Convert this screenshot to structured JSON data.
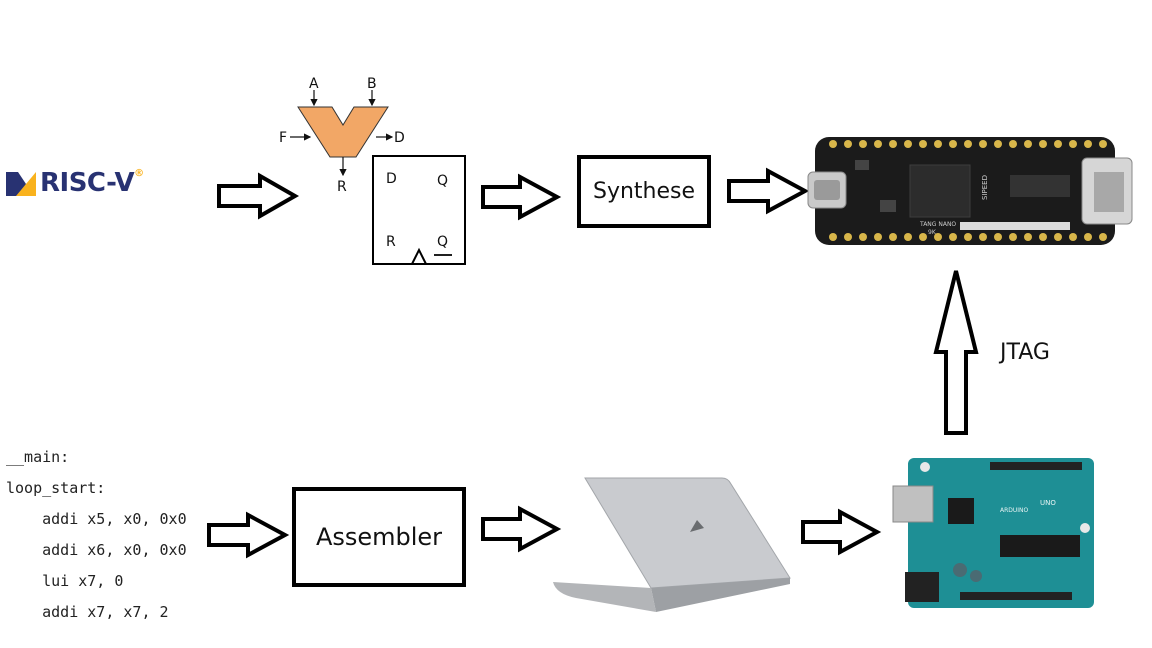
{
  "logo": {
    "text": "RISC-V",
    "mark": "®"
  },
  "alu": {
    "inputs": [
      "A",
      "B"
    ],
    "function": "F",
    "output": "D",
    "result": "R"
  },
  "flipflop": {
    "d": "D",
    "q": "Q",
    "r": "R",
    "qbar": "Q"
  },
  "boxes": {
    "synthese": "Synthese",
    "assembler": "Assembler"
  },
  "fpga_board": {
    "label1": "TANG NANO",
    "label2": "9K",
    "label3": "SIPEED"
  },
  "arduino": {
    "label1": "UNO",
    "label2": "ARDUINO"
  },
  "link_label": "JTAG",
  "code": {
    "lines": [
      "__main:",
      "loop_start:",
      "    addi x5, x0, 0x0",
      "    addi x6, x0, 0x0",
      "    lui x7, 0",
      "    addi x7, x7, 2"
    ]
  }
}
